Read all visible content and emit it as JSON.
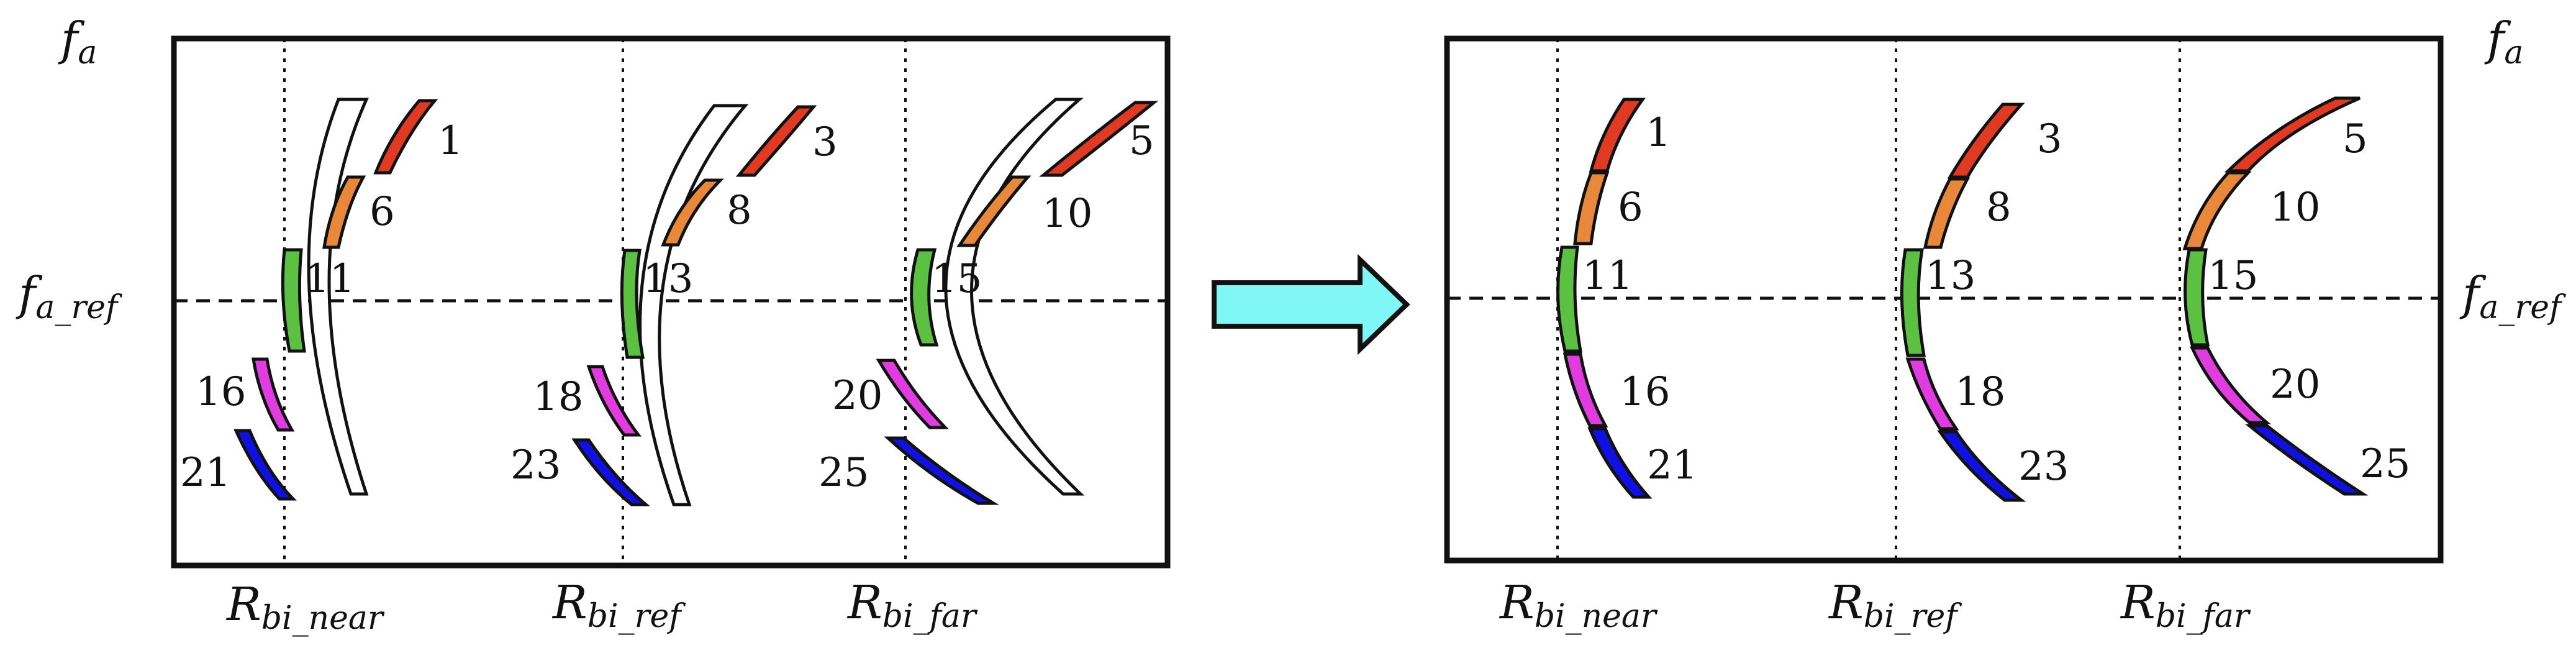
{
  "colors": {
    "red": "#e03a22",
    "orange": "#e8883a",
    "green": "#5cc043",
    "magenta": "#e03ce0",
    "blue": "#1010e0",
    "white": "#ffffff",
    "arrow": "#7ff7f7",
    "frame": "#111111"
  },
  "axis": {
    "fa": {
      "main": "f",
      "sub": "a"
    },
    "fa_ref": {
      "main": "f",
      "sub": "a_ref"
    },
    "r_near": {
      "main": "R",
      "sub": "bi_near"
    },
    "r_ref": {
      "main": "R",
      "sub": "bi_ref"
    },
    "r_far": {
      "main": "R",
      "sub": "bi_far"
    }
  },
  "left_panel": {
    "near": {
      "labels": [
        "1",
        "6",
        "11",
        "16",
        "21"
      ]
    },
    "ref": {
      "labels": [
        "3",
        "8",
        "13",
        "18",
        "23"
      ]
    },
    "far": {
      "labels": [
        "5",
        "10",
        "15",
        "20",
        "25"
      ]
    }
  },
  "right_panel": {
    "near": {
      "labels": [
        "1",
        "6",
        "11",
        "16",
        "21"
      ]
    },
    "ref": {
      "labels": [
        "3",
        "8",
        "13",
        "18",
        "23"
      ]
    },
    "far": {
      "labels": [
        "5",
        "10",
        "15",
        "20",
        "25"
      ]
    }
  },
  "arrow": {
    "icon": "right-arrow-icon"
  }
}
